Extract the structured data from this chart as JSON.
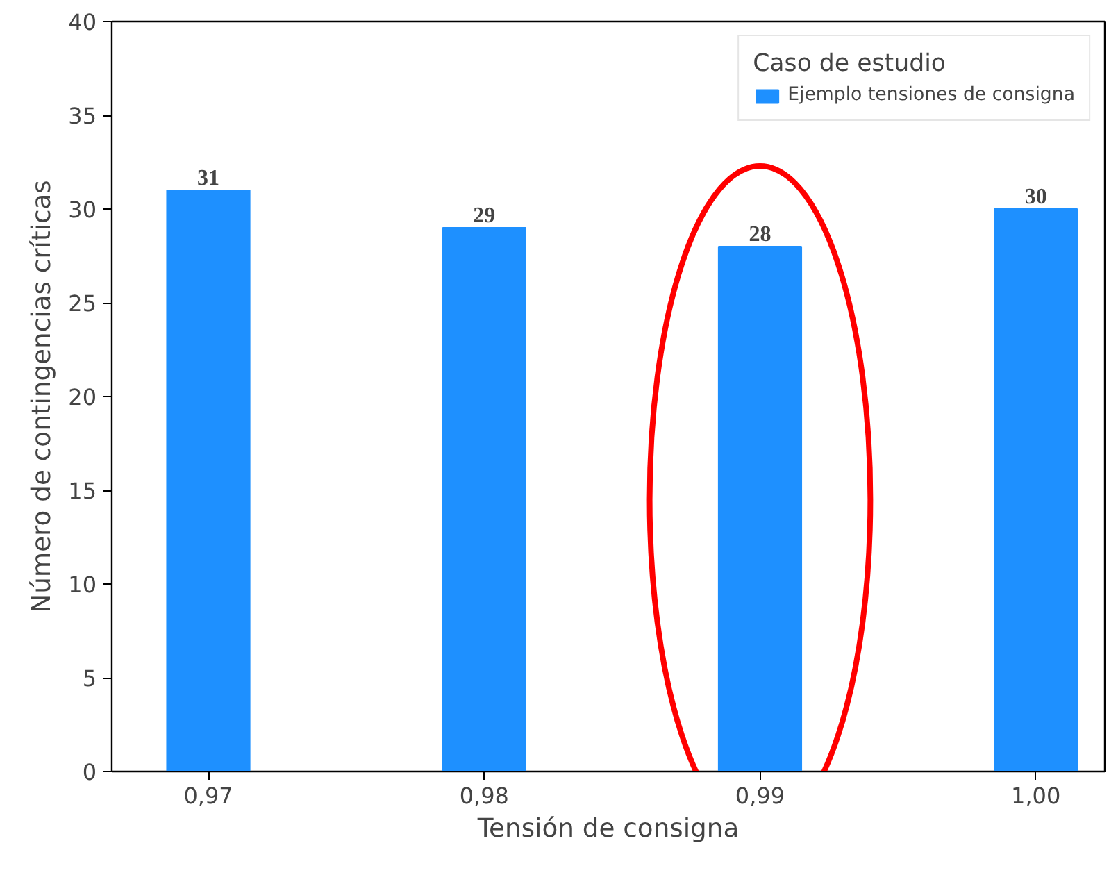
{
  "chart_data": {
    "type": "bar",
    "xlabel": "Tensión de consigna",
    "ylabel": "Número de contingencias críticas",
    "legend_title": "Caso de estudio",
    "categories": [
      "0,97",
      "0,98",
      "0,99",
      "1,00"
    ],
    "series": [
      {
        "name": "Ejemplo tensiones de consigna",
        "color": "#1e90ff",
        "values": [
          31,
          29,
          28,
          30
        ]
      }
    ],
    "ylim": [
      0,
      40
    ],
    "yticks": [
      0,
      5,
      10,
      15,
      20,
      25,
      30,
      35,
      40
    ],
    "data_labels": true,
    "legend": "top right",
    "grid": false
  }
}
